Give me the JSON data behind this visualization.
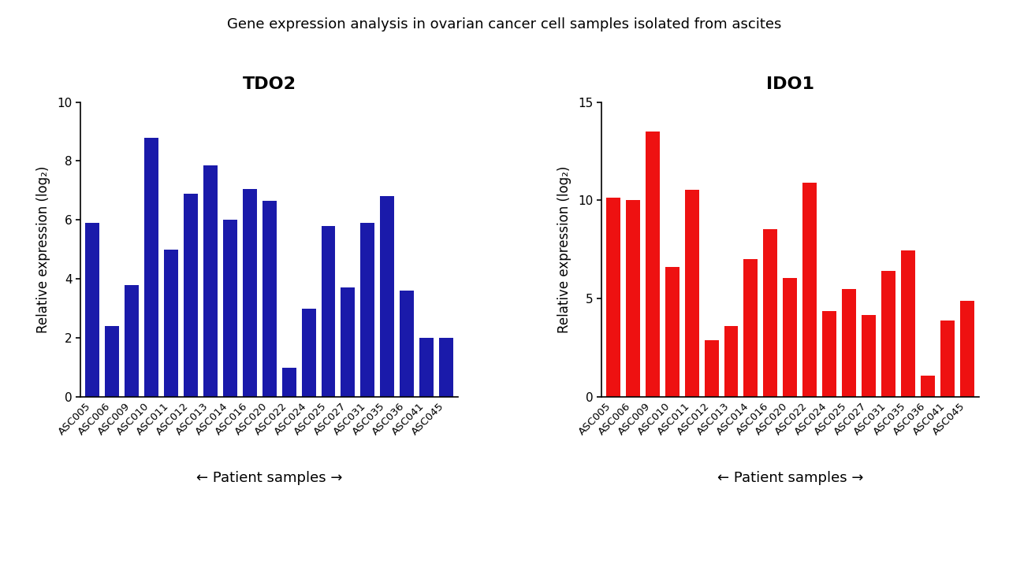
{
  "title": "Gene expression analysis in ovarian cancer cell samples isolated from ascites",
  "title_fontsize": 13,
  "xlabel": "← Patient samples →",
  "ylabel": "Relative expression (log₂)",
  "background_color": "#ffffff",
  "tdo2": {
    "subtitle": "TDO2",
    "color": "#1a1aaa",
    "ylim": [
      0,
      10
    ],
    "yticks": [
      0,
      2,
      4,
      6,
      8,
      10
    ],
    "categories": [
      "ASC005",
      "ASC006",
      "ASC009",
      "ASC010",
      "ASC011",
      "ASC012",
      "ASC013",
      "ASC014",
      "ASC016",
      "ASC020",
      "ASC022",
      "ASC024",
      "ASC025",
      "ASC027",
      "ASC031",
      "ASC035",
      "ASC036",
      "ASC041",
      "ASC045"
    ],
    "values": [
      5.9,
      2.4,
      3.8,
      8.8,
      5.0,
      6.9,
      7.85,
      6.0,
      7.05,
      6.65,
      1.0,
      3.0,
      5.8,
      3.7,
      5.9,
      6.8,
      3.6,
      2.0,
      2.0
    ]
  },
  "ido1": {
    "subtitle": "IDO1",
    "color": "#ee1111",
    "ylim": [
      0,
      15
    ],
    "yticks": [
      0,
      5,
      10,
      15
    ],
    "categories": [
      "ASC005",
      "ASC006",
      "ASC009",
      "ASC010",
      "ASC011",
      "ASC012",
      "ASC013",
      "ASC014",
      "ASC016",
      "ASC020",
      "ASC022",
      "ASC024",
      "ASC025",
      "ASC027",
      "ASC031",
      "ASC035",
      "ASC036",
      "ASC041",
      "ASC045"
    ],
    "values": [
      10.15,
      10.0,
      13.5,
      6.6,
      10.55,
      2.9,
      3.6,
      7.0,
      8.55,
      6.05,
      10.9,
      4.35,
      5.5,
      4.15,
      6.4,
      7.45,
      1.1,
      3.9,
      4.9
    ]
  }
}
